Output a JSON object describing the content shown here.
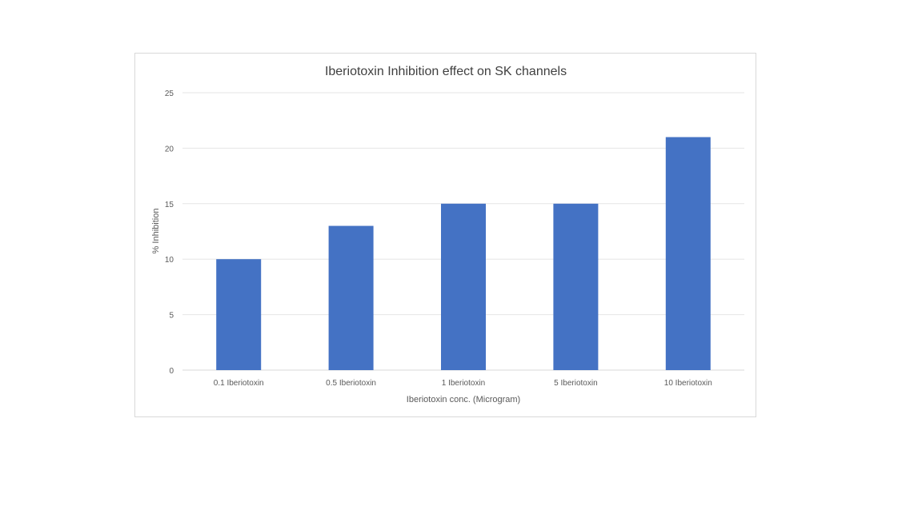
{
  "chart_data": {
    "type": "bar",
    "title": "Iberiotoxin Inhibition effect on SK channels",
    "xlabel": "Iberiotoxin conc. (Microgram)",
    "ylabel": "% Inhibition",
    "categories": [
      "0.1 Iberiotoxin",
      "0.5 Iberiotoxin",
      "1 Iberiotoxin",
      "5 Iberiotoxin",
      "10 Iberiotoxin"
    ],
    "values": [
      10,
      13,
      15,
      15,
      21
    ],
    "ylim": [
      0,
      25
    ],
    "yticks": [
      "0",
      "5",
      "10",
      "15",
      "20",
      "25"
    ],
    "grid": true,
    "legend": "none",
    "bar_color": "#4472c4"
  }
}
